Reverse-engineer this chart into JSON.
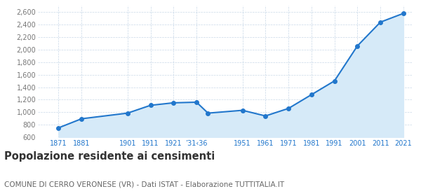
{
  "years": [
    1871,
    1881,
    1901,
    1911,
    1921,
    1931,
    1936,
    1951,
    1961,
    1971,
    1981,
    1991,
    2001,
    2011,
    2021
  ],
  "population": [
    750,
    895,
    985,
    1110,
    1150,
    1160,
    985,
    1030,
    940,
    1060,
    1280,
    1500,
    2060,
    2440,
    2580
  ],
  "ylim": [
    600,
    2700
  ],
  "yticks": [
    600,
    800,
    1000,
    1200,
    1400,
    1600,
    1800,
    2000,
    2200,
    2400,
    2600
  ],
  "xtick_positions": [
    1871,
    1881,
    1901,
    1911,
    1921,
    1931,
    1951,
    1961,
    1971,
    1981,
    1991,
    2001,
    2011,
    2021
  ],
  "xtick_labels": [
    "1871",
    "1881",
    "1901",
    "1911",
    "1921",
    "’31‹36",
    "1951",
    "1961",
    "1971",
    "1981",
    "1991",
    "2001",
    "2011",
    "2021"
  ],
  "xlim_left": 1862,
  "xlim_right": 2025,
  "line_color": "#2277cc",
  "fill_color": "#d6eaf8",
  "marker_color": "#2277cc",
  "bg_color": "#ffffff",
  "grid_color": "#c8d8e8",
  "xtick_color": "#2277cc",
  "ytick_color": "#777777",
  "title": "Popolazione residente ai censimenti",
  "subtitle": "COMUNE DI CERRO VERONESE (VR) - Dati ISTAT - Elaborazione TUTTITALIA.IT",
  "title_fontsize": 10.5,
  "subtitle_fontsize": 7.5
}
